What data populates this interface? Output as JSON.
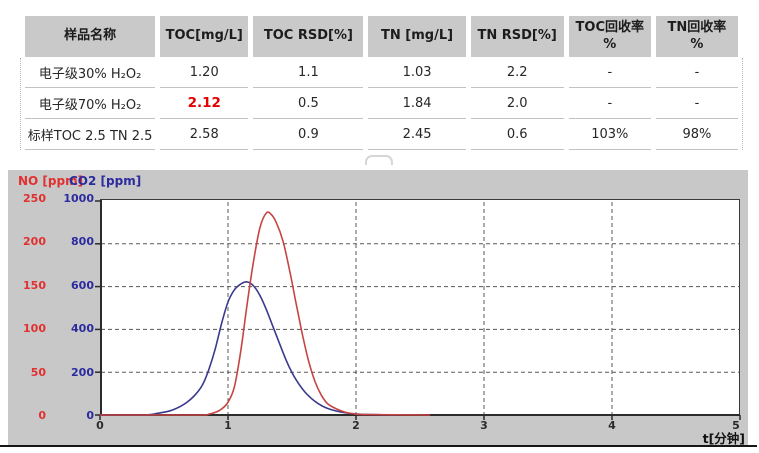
{
  "table": {
    "columns": [
      "样品名称",
      "TOC[mg/L]",
      "TOC RSD[%]",
      "TN [mg/L]",
      "TN RSD[%]",
      "TOC回收率\n%",
      "TN回收率\n%"
    ],
    "rows": [
      {
        "name": "电子级30% H₂O₂",
        "values": [
          "1.20",
          "1.1",
          "1.03",
          "2.2",
          "-",
          "-"
        ],
        "highlight": -1
      },
      {
        "name": "电子级70% H₂O₂",
        "values": [
          "2.12",
          "0.5",
          "1.84",
          "2.0",
          "-",
          "-"
        ],
        "highlight": 0
      },
      {
        "name": "标样TOC 2.5 TN 2.5",
        "values": [
          "2.58",
          "0.9",
          "2.45",
          "0.6",
          "103%",
          "98%"
        ],
        "highlight": -1
      }
    ],
    "highlight_color": "#e60000",
    "header_bg": "#c9c9c9"
  },
  "chart_data": {
    "type": "line",
    "title": "",
    "x_axis": {
      "label": "t[分钟]",
      "min": 0,
      "max": 5,
      "ticks": [
        0,
        1,
        2,
        3,
        4,
        5
      ]
    },
    "y_axes": [
      {
        "name": "NO",
        "label": "NO [ppm]",
        "color": "#e03030",
        "min": 0,
        "max": 250,
        "ticks": [
          0,
          50,
          100,
          150,
          200,
          250
        ]
      },
      {
        "name": "CO2",
        "label": "CO2 [ppm]",
        "color": "#2b2b9e",
        "min": 0,
        "max": 1000,
        "ticks": [
          0,
          200,
          400,
          600,
          800,
          1000
        ]
      }
    ],
    "grid": {
      "color": "#585858",
      "style": "dashed"
    },
    "panel_bg": "#c8c8c8",
    "plot_bg": "#ffffff",
    "axis_color": "#2b2b2b",
    "legend_position": "top-left",
    "series": [
      {
        "name": "CO2",
        "axis": "CO2",
        "color": "#3a3a8c",
        "points": [
          [
            0,
            0
          ],
          [
            0.35,
            0
          ],
          [
            0.45,
            8
          ],
          [
            0.55,
            20
          ],
          [
            0.62,
            38
          ],
          [
            0.68,
            60
          ],
          [
            0.74,
            92
          ],
          [
            0.8,
            140
          ],
          [
            0.85,
            212
          ],
          [
            0.9,
            308
          ],
          [
            0.95,
            428
          ],
          [
            1.0,
            528
          ],
          [
            1.05,
            585
          ],
          [
            1.1,
            612
          ],
          [
            1.15,
            622
          ],
          [
            1.2,
            603
          ],
          [
            1.25,
            558
          ],
          [
            1.3,
            492
          ],
          [
            1.35,
            415
          ],
          [
            1.4,
            338
          ],
          [
            1.45,
            262
          ],
          [
            1.5,
            198
          ],
          [
            1.55,
            148
          ],
          [
            1.6,
            108
          ],
          [
            1.65,
            78
          ],
          [
            1.7,
            55
          ],
          [
            1.75,
            38
          ],
          [
            1.8,
            26
          ],
          [
            1.88,
            14
          ],
          [
            1.96,
            7
          ],
          [
            2.05,
            3
          ],
          [
            2.3,
            0
          ]
        ]
      },
      {
        "name": "NO",
        "axis": "NO",
        "color": "#c64444",
        "points": [
          [
            0,
            0
          ],
          [
            0.5,
            0
          ],
          [
            0.8,
            0
          ],
          [
            0.85,
            1
          ],
          [
            0.9,
            3
          ],
          [
            0.95,
            7
          ],
          [
            1.0,
            15
          ],
          [
            1.05,
            33
          ],
          [
            1.1,
            75
          ],
          [
            1.15,
            130
          ],
          [
            1.2,
            180
          ],
          [
            1.25,
            219
          ],
          [
            1.3,
            236
          ],
          [
            1.34,
            234
          ],
          [
            1.38,
            224
          ],
          [
            1.43,
            203
          ],
          [
            1.48,
            170
          ],
          [
            1.53,
            132
          ],
          [
            1.58,
            95
          ],
          [
            1.63,
            63
          ],
          [
            1.68,
            39
          ],
          [
            1.73,
            23
          ],
          [
            1.78,
            13
          ],
          [
            1.85,
            7
          ],
          [
            1.92,
            3
          ],
          [
            2.0,
            1
          ],
          [
            2.1,
            0.5
          ],
          [
            2.58,
            0
          ]
        ]
      }
    ]
  }
}
